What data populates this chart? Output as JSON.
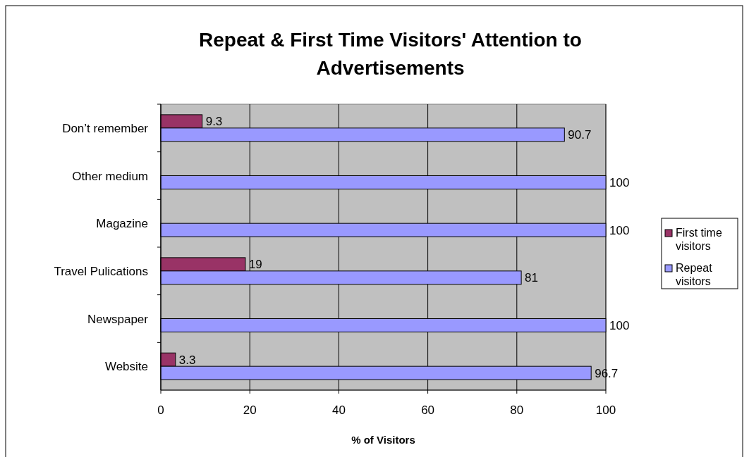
{
  "chart_data": {
    "type": "bar",
    "orientation": "horizontal",
    "title": "Repeat & First Time Visitors' Attention to Advertisements",
    "xlabel": "% of Visitors",
    "categories": [
      "Don’t remember",
      "Other medium",
      "Magazine",
      "Travel Pulications",
      "Newspaper",
      "Website"
    ],
    "series": [
      {
        "name": "First time visitors",
        "color": "#993366",
        "values": [
          9.3,
          null,
          null,
          19,
          null,
          3.3
        ]
      },
      {
        "name": "Repeat visitors",
        "color": "#9999ff",
        "values": [
          90.7,
          100,
          100,
          81,
          100,
          96.7
        ]
      }
    ],
    "xlim": [
      0,
      100
    ],
    "xticks": [
      0,
      20,
      40,
      60,
      80,
      100
    ],
    "grid": "x",
    "legend": "right",
    "data_labels": true
  }
}
